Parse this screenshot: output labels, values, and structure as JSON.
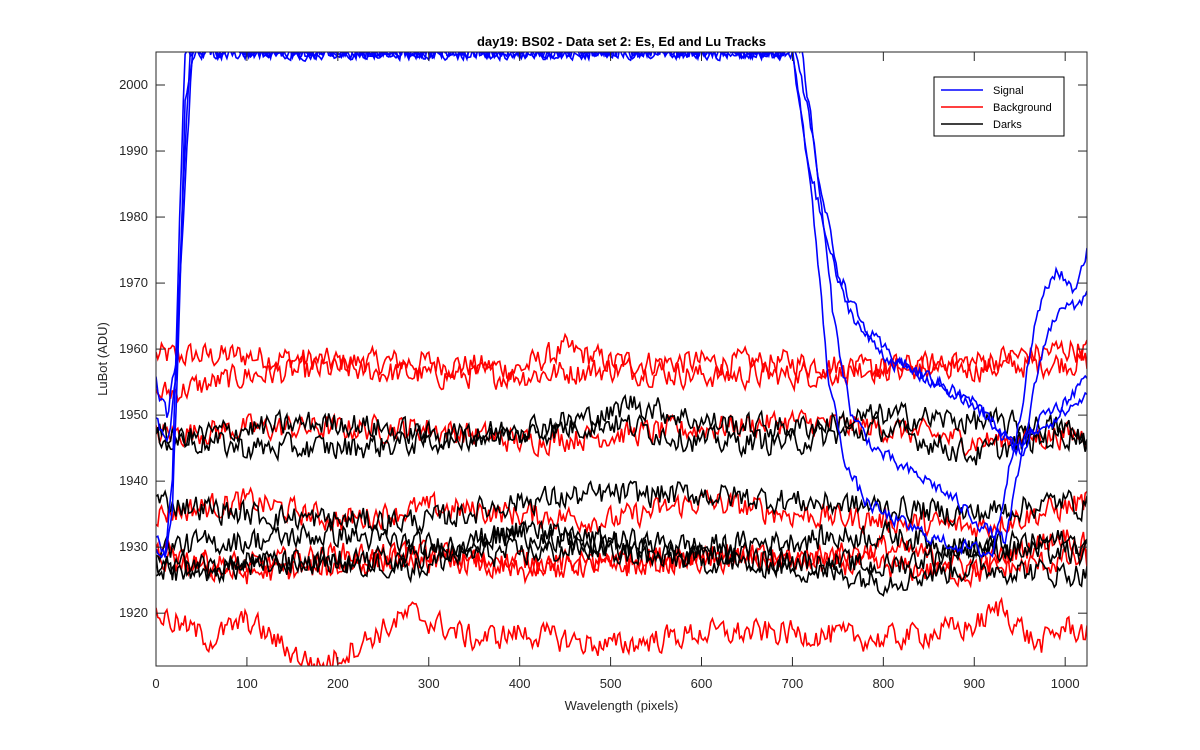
{
  "chart_data": {
    "type": "line",
    "title": "day19: BS02 - Data set 2: Es, Ed and Lu Tracks",
    "xlabel": "Wavelength (pixels)",
    "ylabel": "LuBot (ADU)",
    "xlim": [
      0,
      1024
    ],
    "ylim": [
      1912,
      2005
    ],
    "xticks": [
      0,
      100,
      200,
      300,
      400,
      500,
      600,
      700,
      800,
      900,
      1000
    ],
    "yticks": [
      1920,
      1930,
      1940,
      1950,
      1960,
      1970,
      1980,
      1990,
      2000
    ],
    "grid": false,
    "legend_position": "top-right",
    "colors": {
      "Signal": "#0000ff",
      "Background": "#ff0000",
      "Darks": "#000000",
      "axis": "#262626"
    },
    "legend": [
      "Signal",
      "Background",
      "Darks"
    ],
    "series": [
      {
        "group": "Signal",
        "x": [
          0,
          10,
          18,
          25,
          32,
          40,
          48,
          700,
          720,
          740,
          760,
          780,
          800,
          830,
          860,
          890,
          920,
          950,
          970,
          990,
          1010,
          1024
        ],
        "y": [
          1930,
          1928,
          1940,
          1975,
          2005,
          2005,
          2005,
          2005,
          1985,
          1955,
          1942,
          1937,
          1935,
          1933,
          1931,
          1930,
          1929,
          1950,
          1966,
          1972,
          1969,
          1975
        ]
      },
      {
        "group": "Signal",
        "x": [
          0,
          10,
          18,
          25,
          32,
          40,
          48,
          705,
          725,
          745,
          765,
          790,
          820,
          850,
          880,
          910,
          935,
          955,
          975,
          995,
          1012,
          1024
        ],
        "y": [
          1931,
          1929,
          1936,
          1962,
          1998,
          2005,
          2005,
          2005,
          1990,
          1965,
          1950,
          1945,
          1942,
          1940,
          1937,
          1933,
          1931,
          1946,
          1960,
          1967,
          1966,
          1969
        ]
      },
      {
        "group": "Signal",
        "x": [
          0,
          12,
          22,
          30,
          38,
          46,
          700,
          715,
          735,
          755,
          780,
          810,
          840,
          870,
          900,
          925,
          950,
          975,
          1000,
          1024
        ],
        "y": [
          1950,
          1945,
          1955,
          1985,
          2005,
          2005,
          2005,
          1990,
          1978,
          1968,
          1962,
          1958,
          1956,
          1954,
          1952,
          1948,
          1944,
          1950,
          1952,
          1956
        ]
      },
      {
        "group": "Signal",
        "x": [
          0,
          12,
          22,
          30,
          40,
          48,
          710,
          730,
          750,
          775,
          800,
          830,
          860,
          890,
          920,
          945,
          970,
          995,
          1024
        ],
        "y": [
          1955,
          1950,
          1958,
          1980,
          2005,
          2005,
          2005,
          1985,
          1972,
          1964,
          1960,
          1957,
          1955,
          1952,
          1949,
          1945,
          1948,
          1950,
          1953
        ]
      },
      {
        "group": "Background",
        "x": [
          0,
          100,
          200,
          300,
          400,
          450,
          500,
          600,
          700,
          800,
          900,
          1000,
          1024
        ],
        "y": [
          1959,
          1959,
          1958,
          1958,
          1957,
          1960,
          1958,
          1958,
          1958,
          1957,
          1957,
          1958,
          1958
        ]
      },
      {
        "group": "Background",
        "x": [
          0,
          100,
          200,
          300,
          400,
          500,
          600,
          700,
          800,
          900,
          1000,
          1024
        ],
        "y": [
          1953,
          1956,
          1957,
          1956,
          1956,
          1957,
          1956,
          1956,
          1957,
          1958,
          1960,
          1960
        ]
      },
      {
        "group": "Background",
        "x": [
          0,
          100,
          200,
          300,
          400,
          500,
          600,
          700,
          800,
          900,
          1000,
          1024
        ],
        "y": [
          1947,
          1948,
          1948,
          1948,
          1946,
          1947,
          1948,
          1949,
          1948,
          1946,
          1947,
          1947
        ]
      },
      {
        "group": "Background",
        "x": [
          0,
          100,
          200,
          300,
          400,
          500,
          600,
          700,
          800,
          900,
          1000,
          1024
        ],
        "y": [
          1935,
          1937,
          1934,
          1936,
          1935,
          1934,
          1937,
          1935,
          1934,
          1933,
          1936,
          1937
        ]
      },
      {
        "group": "Background",
        "x": [
          0,
          100,
          200,
          300,
          400,
          500,
          600,
          700,
          800,
          900,
          1000,
          1024
        ],
        "y": [
          1929,
          1927,
          1929,
          1928,
          1928,
          1927,
          1928,
          1928,
          1927,
          1926,
          1928,
          1928
        ]
      },
      {
        "group": "Background",
        "x": [
          0,
          100,
          200,
          300,
          400,
          500,
          600,
          700,
          800,
          900,
          1000,
          1024
        ],
        "y": [
          1928,
          1926,
          1927,
          1929,
          1926,
          1928,
          1929,
          1928,
          1930,
          1927,
          1932,
          1930
        ]
      },
      {
        "group": "Background",
        "x": [
          0,
          60,
          100,
          150,
          180,
          220,
          280,
          350,
          400,
          500,
          600,
          700,
          800,
          900,
          930,
          970,
          1000,
          1024
        ],
        "y": [
          1920,
          1916,
          1919,
          1914,
          1912,
          1915,
          1920,
          1916,
          1917,
          1915,
          1917,
          1917,
          1916,
          1918,
          1921,
          1915,
          1918,
          1917
        ]
      },
      {
        "group": "Darks",
        "x": [
          0,
          100,
          200,
          300,
          400,
          500,
          600,
          700,
          800,
          900,
          1000,
          1024
        ],
        "y": [
          1946,
          1948,
          1949,
          1947,
          1947,
          1949,
          1946,
          1946,
          1948,
          1944,
          1947,
          1947
        ]
      },
      {
        "group": "Darks",
        "x": [
          0,
          100,
          200,
          300,
          400,
          500,
          520,
          600,
          700,
          800,
          900,
          1000,
          1024
        ],
        "y": [
          1947,
          1945,
          1945,
          1946,
          1948,
          1950,
          1952,
          1949,
          1948,
          1950,
          1949,
          1948,
          1946
        ]
      },
      {
        "group": "Darks",
        "x": [
          0,
          100,
          200,
          300,
          400,
          500,
          600,
          700,
          800,
          900,
          1000,
          1024
        ],
        "y": [
          1937,
          1935,
          1934,
          1934,
          1937,
          1938,
          1938,
          1937,
          1936,
          1935,
          1937,
          1936
        ]
      },
      {
        "group": "Darks",
        "x": [
          0,
          100,
          200,
          300,
          400,
          500,
          600,
          700,
          800,
          900,
          1000,
          1024
        ],
        "y": [
          1930,
          1931,
          1932,
          1930,
          1932,
          1931,
          1930,
          1931,
          1932,
          1930,
          1931,
          1930
        ]
      },
      {
        "group": "Darks",
        "x": [
          0,
          100,
          200,
          300,
          400,
          500,
          600,
          700,
          800,
          900,
          1000,
          1024
        ],
        "y": [
          1927,
          1928,
          1927,
          1929,
          1929,
          1930,
          1929,
          1928,
          1927,
          1930,
          1929,
          1929
        ]
      },
      {
        "group": "Darks",
        "x": [
          0,
          100,
          200,
          300,
          400,
          500,
          600,
          700,
          800,
          900,
          1000,
          1024
        ],
        "y": [
          1926,
          1927,
          1928,
          1927,
          1933,
          1929,
          1928,
          1927,
          1925,
          1927,
          1926,
          1926
        ]
      }
    ]
  }
}
